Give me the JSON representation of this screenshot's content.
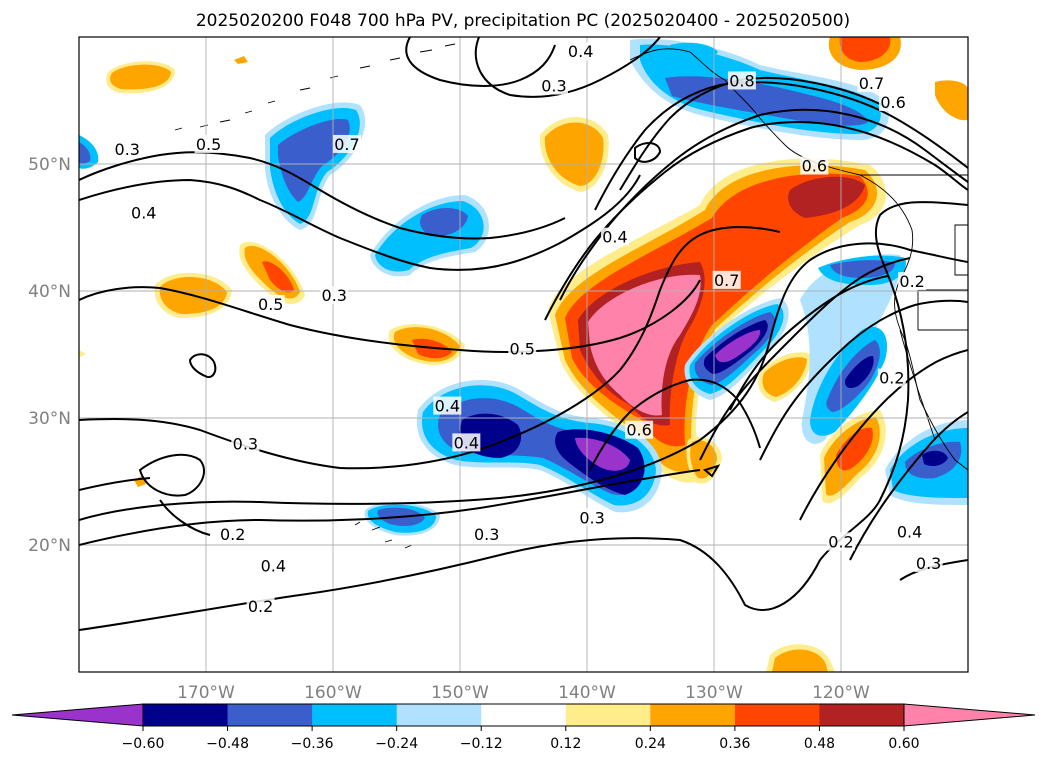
{
  "title": "2025020200 F048 700 hPa PV, precipitation PC (2025020400 - 2025020500)",
  "map": {
    "lon_range": [
      -180,
      -110
    ],
    "lat_range": [
      10,
      60
    ],
    "lat_ticks": [
      {
        "value": 20,
        "label": "20°N"
      },
      {
        "value": 30,
        "label": "30°N"
      },
      {
        "value": 40,
        "label": "40°N"
      },
      {
        "value": 50,
        "label": "50°N"
      }
    ],
    "lon_ticks": [
      {
        "value": -170,
        "label": "170°W"
      },
      {
        "value": -160,
        "label": "160°W"
      },
      {
        "value": -150,
        "label": "150°W"
      },
      {
        "value": -140,
        "label": "140°W"
      },
      {
        "value": -130,
        "label": "130°W"
      },
      {
        "value": -120,
        "label": "120°W"
      }
    ],
    "grid": true
  },
  "colorbar": {
    "colors": [
      "#9933cc",
      "#00008b",
      "#3a5fcd",
      "#00bfff",
      "#b0e2ff",
      "#ffffff",
      "#ffec8b",
      "#ffa500",
      "#ff4500",
      "#b22222",
      "#ff82ab"
    ],
    "ticks": [
      "−0.60",
      "−0.48",
      "−0.36",
      "−0.24",
      "−0.12",
      "0.12",
      "0.24",
      "0.36",
      "0.48",
      "0.60"
    ],
    "extend": "both"
  },
  "pv_contour_labels": [
    {
      "text": "0.4",
      "lon": -140.5,
      "lat": 58.8
    },
    {
      "text": "0.3",
      "lon": -142.6,
      "lat": 56.1
    },
    {
      "text": "0.8",
      "lon": -127.8,
      "lat": 56.5
    },
    {
      "text": "0.7",
      "lon": -117.6,
      "lat": 56.3
    },
    {
      "text": "0.6",
      "lon": -115.9,
      "lat": 54.8
    },
    {
      "text": "0.3",
      "lon": -176.2,
      "lat": 51.1
    },
    {
      "text": "0.5",
      "lon": -169.8,
      "lat": 51.5
    },
    {
      "text": "0.7",
      "lon": -158.9,
      "lat": 51.5
    },
    {
      "text": "0.6",
      "lon": -122.1,
      "lat": 49.8
    },
    {
      "text": "0.4",
      "lon": -174.9,
      "lat": 46.1
    },
    {
      "text": "0.4",
      "lon": -137.8,
      "lat": 44.2
    },
    {
      "text": "0.7",
      "lon": -129.0,
      "lat": 40.8
    },
    {
      "text": "0.2",
      "lon": -114.4,
      "lat": 40.7
    },
    {
      "text": "0.5",
      "lon": -164.9,
      "lat": 38.9
    },
    {
      "text": "0.5",
      "lon": -145.1,
      "lat": 35.4
    },
    {
      "text": "0.2",
      "lon": -116.0,
      "lat": 33.1
    },
    {
      "text": "0.4",
      "lon": -151.0,
      "lat": 30.9
    },
    {
      "text": "0.3",
      "lon": -159.9,
      "lat": 39.6
    },
    {
      "text": "0.6",
      "lon": -135.9,
      "lat": 29.0
    },
    {
      "text": "0.4",
      "lon": -149.5,
      "lat": 28.0
    },
    {
      "text": "0.3",
      "lon": -166.9,
      "lat": 27.9
    },
    {
      "text": "0.2",
      "lon": -167.9,
      "lat": 20.8
    },
    {
      "text": "0.4",
      "lon": -164.7,
      "lat": 18.3
    },
    {
      "text": "0.3",
      "lon": -147.9,
      "lat": 20.8
    },
    {
      "text": "0.3",
      "lon": -139.6,
      "lat": 22.1
    },
    {
      "text": "0.2",
      "lon": -120.0,
      "lat": 20.2
    },
    {
      "text": "0.4",
      "lon": -114.6,
      "lat": 21.0
    },
    {
      "text": "0.3",
      "lon": -113.1,
      "lat": 18.5
    },
    {
      "text": "0.2",
      "lon": -165.7,
      "lat": 15.1
    }
  ]
}
